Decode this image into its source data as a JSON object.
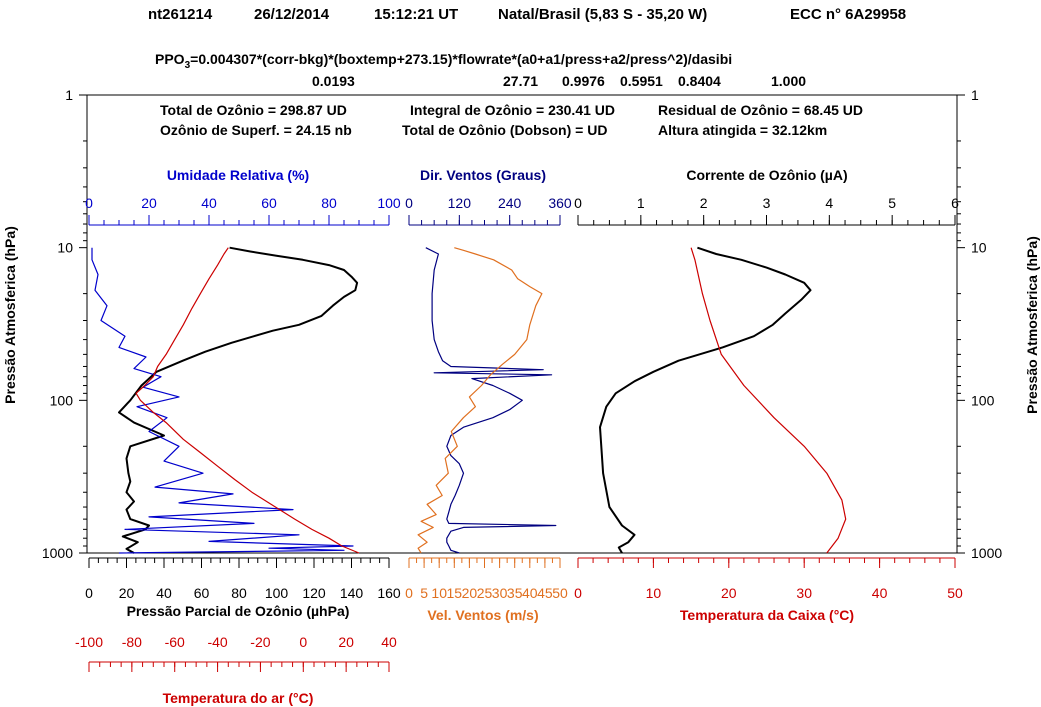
{
  "header": {
    "id": "nt261214",
    "date": "26/12/2014",
    "time": "15:12:21 UT",
    "station": "Natal/Brasil (5,83 S - 35,20 W)",
    "sonde": "ECC  n° 6A29958"
  },
  "formula": {
    "prefix": "PPO",
    "sub": "3",
    "rest": "=0.004307*(corr-bkg)*(boxtemp+273.15)*flowrate*(a0+a1/press+a2/press^2)/dasibi",
    "values": [
      "0.0193",
      "27.71",
      "0.9976",
      "0.5951",
      "0.8404",
      "1.000"
    ]
  },
  "summary": {
    "total": "Total de Ozônio = 298.87 UD",
    "integral": "Integral de Ozônio = 230.41 UD",
    "residual": "Residual  de Ozônio = 68.45 UD",
    "surface": "Ozônio de Superf. = 24.15 nb",
    "dobson": "Total de Ozônio (Dobson) =  UD",
    "altitude": "Altura atingida = 32.12km"
  },
  "chart_data": {
    "type": "line",
    "y_axis": {
      "label": "Pressão Atmosferica (hPa)",
      "scale": "log",
      "inverted": true,
      "range": [
        1,
        1000
      ],
      "ticks": [
        "1",
        "10",
        "100",
        "1000"
      ]
    },
    "panels": [
      {
        "name": "left",
        "axes": {
          "ozone_pp": {
            "label": "Pressão Parcial de Ozônio (µhPa)",
            "range": [
              0,
              160
            ],
            "ticks": [
              "0",
              "20",
              "40",
              "60",
              "80",
              "100",
              "120",
              "140",
              "160"
            ],
            "color": "#000000"
          },
          "humidity": {
            "label": "Umidade Relativa (%)",
            "range": [
              0,
              100
            ],
            "ticks": [
              "0",
              "20",
              "40",
              "60",
              "80",
              "100"
            ],
            "color": "#0000cc"
          },
          "air_temp": {
            "label": "Temperatura do ar (°C)",
            "range": [
              -100,
              40
            ],
            "ticks": [
              "-100",
              "-80",
              "-60",
              "-40",
              "-20",
              "0",
              "20",
              "40"
            ],
            "color": "#cc0000"
          }
        },
        "series": [
          {
            "axis": "ozone_pp",
            "color": "#000000",
            "points": [
              [
                24,
                1000
              ],
              [
                20,
                940
              ],
              [
                26,
                850
              ],
              [
                18,
                780
              ],
              [
                30,
                700
              ],
              [
                32,
                660
              ],
              [
                22,
                600
              ],
              [
                20,
                520
              ],
              [
                24,
                460
              ],
              [
                20,
                400
              ],
              [
                22,
                340
              ],
              [
                21,
                300
              ],
              [
                20,
                240
              ],
              [
                22,
                200
              ],
              [
                40,
                170
              ],
              [
                24,
                140
              ],
              [
                16,
                120
              ],
              [
                22,
                100
              ],
              [
                28,
                80
              ],
              [
                36,
                65
              ],
              [
                50,
                55
              ],
              [
                62,
                48
              ],
              [
                76,
                42
              ],
              [
                88,
                38
              ],
              [
                98,
                35
              ],
              [
                112,
                32
              ],
              [
                124,
                28
              ],
              [
                130,
                24
              ],
              [
                136,
                21
              ],
              [
                142,
                19
              ],
              [
                143,
                17
              ],
              [
                140,
                15.5
              ],
              [
                136,
                14
              ],
              [
                128,
                13
              ],
              [
                114,
                12
              ],
              [
                100,
                11.3
              ],
              [
                86,
                10.6
              ],
              [
                75,
                10
              ]
            ]
          },
          {
            "axis": "humidity",
            "color": "#0000cc",
            "points": [
              [
                10,
                1000
              ],
              [
                85,
                960
              ],
              [
                60,
                930
              ],
              [
                88,
                900
              ],
              [
                40,
                840
              ],
              [
                70,
                760
              ],
              [
                12,
                700
              ],
              [
                55,
                640
              ],
              [
                20,
                580
              ],
              [
                68,
                520
              ],
              [
                30,
                470
              ],
              [
                48,
                410
              ],
              [
                22,
                370
              ],
              [
                38,
                300
              ],
              [
                25,
                250
              ],
              [
                30,
                200
              ],
              [
                20,
                160
              ],
              [
                26,
                130
              ],
              [
                16,
                110
              ],
              [
                30,
                95
              ],
              [
                18,
                82
              ],
              [
                24,
                70
              ],
              [
                15,
                62
              ],
              [
                19,
                52
              ],
              [
                10,
                45
              ],
              [
                12,
                38
              ],
              [
                4,
                30
              ],
              [
                6,
                24
              ],
              [
                2,
                19
              ],
              [
                3,
                15
              ],
              [
                1,
                12
              ],
              [
                1,
                10
              ]
            ]
          },
          {
            "axis": "air_temp",
            "color": "#cc0000",
            "points": [
              [
                26,
                1000
              ],
              [
                18,
                900
              ],
              [
                12,
                800
              ],
              [
                4,
                700
              ],
              [
                -4,
                600
              ],
              [
                -13,
                500
              ],
              [
                -24,
                400
              ],
              [
                -32,
                330
              ],
              [
                -40,
                270
              ],
              [
                -48,
                220
              ],
              [
                -56,
                180
              ],
              [
                -64,
                140
              ],
              [
                -70,
                120
              ],
              [
                -76,
                100
              ],
              [
                -78,
                90
              ],
              [
                -74,
                80
              ],
              [
                -70,
                70
              ],
              [
                -68,
                60
              ],
              [
                -64,
                50
              ],
              [
                -60,
                40
              ],
              [
                -56,
                32
              ],
              [
                -52,
                25
              ],
              [
                -48,
                20
              ],
              [
                -44,
                16
              ],
              [
                -40,
                13
              ],
              [
                -37,
                11
              ],
              [
                -35,
                10
              ]
            ]
          }
        ]
      },
      {
        "name": "middle",
        "axes": {
          "wind_dir": {
            "label": "Dir. Ventos (Graus)",
            "range": [
              0,
              360
            ],
            "ticks": [
              "0",
              "120",
              "240",
              "360"
            ],
            "color": "#000080"
          },
          "wind_speed": {
            "label": "Vel. Ventos (m/s)",
            "range": [
              0,
              50
            ],
            "ticks": [
              "0",
              "5",
              "10",
              "15",
              "20",
              "25",
              "30",
              "35",
              "40",
              "45",
              "50"
            ],
            "color": "#e07020"
          }
        },
        "series": [
          {
            "axis": "wind_dir",
            "color": "#000080",
            "points": [
              [
                120,
                1000
              ],
              [
                100,
                960
              ],
              [
                95,
                900
              ],
              [
                90,
                850
              ],
              [
                90,
                800
              ],
              [
                100,
                720
              ],
              [
                130,
                680
              ],
              [
                350,
                660
              ],
              [
                95,
                640
              ],
              [
                90,
                600
              ],
              [
                95,
                540
              ],
              [
                100,
                480
              ],
              [
                110,
                420
              ],
              [
                120,
                360
              ],
              [
                130,
                300
              ],
              [
                120,
                260
              ],
              [
                100,
                230
              ],
              [
                90,
                200
              ],
              [
                100,
                170
              ],
              [
                130,
                150
              ],
              [
                200,
                130
              ],
              [
                240,
                115
              ],
              [
                270,
                100
              ],
              [
                240,
                90
              ],
              [
                200,
                80
              ],
              [
                150,
                72
              ],
              [
                340,
                68
              ],
              [
                60,
                66
              ],
              [
                320,
                63
              ],
              [
                100,
                60
              ],
              [
                80,
                55
              ],
              [
                70,
                48
              ],
              [
                60,
                40
              ],
              [
                55,
                30
              ],
              [
                55,
                20
              ],
              [
                60,
                14
              ],
              [
                70,
                11
              ],
              [
                40,
                10
              ]
            ]
          },
          {
            "axis": "wind_speed",
            "color": "#e07020",
            "points": [
              [
                4,
                1000
              ],
              [
                3,
                930
              ],
              [
                6,
                850
              ],
              [
                3,
                760
              ],
              [
                8,
                680
              ],
              [
                4,
                620
              ],
              [
                9,
                560
              ],
              [
                6,
                480
              ],
              [
                11,
                420
              ],
              [
                9,
                360
              ],
              [
                13,
                300
              ],
              [
                12,
                240
              ],
              [
                16,
                200
              ],
              [
                14,
                160
              ],
              [
                18,
                130
              ],
              [
                22,
                110
              ],
              [
                20,
                95
              ],
              [
                24,
                80
              ],
              [
                27,
                68
              ],
              [
                31,
                58
              ],
              [
                35,
                50
              ],
              [
                39,
                40
              ],
              [
                40,
                32
              ],
              [
                42,
                24
              ],
              [
                44,
                20
              ],
              [
                40,
                18
              ],
              [
                36,
                16
              ],
              [
                34,
                14
              ],
              [
                28,
                12
              ],
              [
                22,
                11
              ],
              [
                18,
                10.4
              ],
              [
                15,
                10
              ]
            ]
          }
        ]
      },
      {
        "name": "right",
        "axes": {
          "ozone_current": {
            "label": "Corrente de Ozônio (µA)",
            "range": [
              0,
              6
            ],
            "ticks": [
              "0",
              "1",
              "2",
              "3",
              "4",
              "5",
              "6"
            ],
            "color": "#000000"
          },
          "box_temp": {
            "label": "Temperatura da Caixa (°C)",
            "range": [
              0,
              50
            ],
            "ticks": [
              "0",
              "10",
              "20",
              "30",
              "40",
              "50"
            ],
            "color": "#cc0000"
          }
        },
        "series": [
          {
            "axis": "ozone_current",
            "color": "#000000",
            "points": [
              [
                0.7,
                1000
              ],
              [
                0.65,
                920
              ],
              [
                0.8,
                850
              ],
              [
                0.9,
                760
              ],
              [
                0.7,
                660
              ],
              [
                0.5,
                500
              ],
              [
                0.4,
                300
              ],
              [
                0.35,
                150
              ],
              [
                0.45,
                110
              ],
              [
                0.6,
                90
              ],
              [
                0.9,
                75
              ],
              [
                1.2,
                65
              ],
              [
                1.6,
                55
              ],
              [
                2.3,
                45
              ],
              [
                2.8,
                38
              ],
              [
                3.1,
                32
              ],
              [
                3.3,
                27
              ],
              [
                3.55,
                22
              ],
              [
                3.7,
                19
              ],
              [
                3.6,
                17
              ],
              [
                3.3,
                15
              ],
              [
                3.0,
                13.5
              ],
              [
                2.6,
                12
              ],
              [
                2.2,
                11
              ],
              [
                1.9,
                10
              ]
            ]
          },
          {
            "axis": "box_temp",
            "color": "#cc0000",
            "points": [
              [
                33,
                1000
              ],
              [
                34.5,
                800
              ],
              [
                35.5,
                600
              ],
              [
                35,
                450
              ],
              [
                33,
                300
              ],
              [
                30,
                200
              ],
              [
                26,
                130
              ],
              [
                22,
                80
              ],
              [
                19,
                50
              ],
              [
                17.5,
                30
              ],
              [
                16.5,
                20
              ],
              [
                15.5,
                12
              ],
              [
                15,
                10
              ]
            ]
          }
        ]
      }
    ]
  }
}
